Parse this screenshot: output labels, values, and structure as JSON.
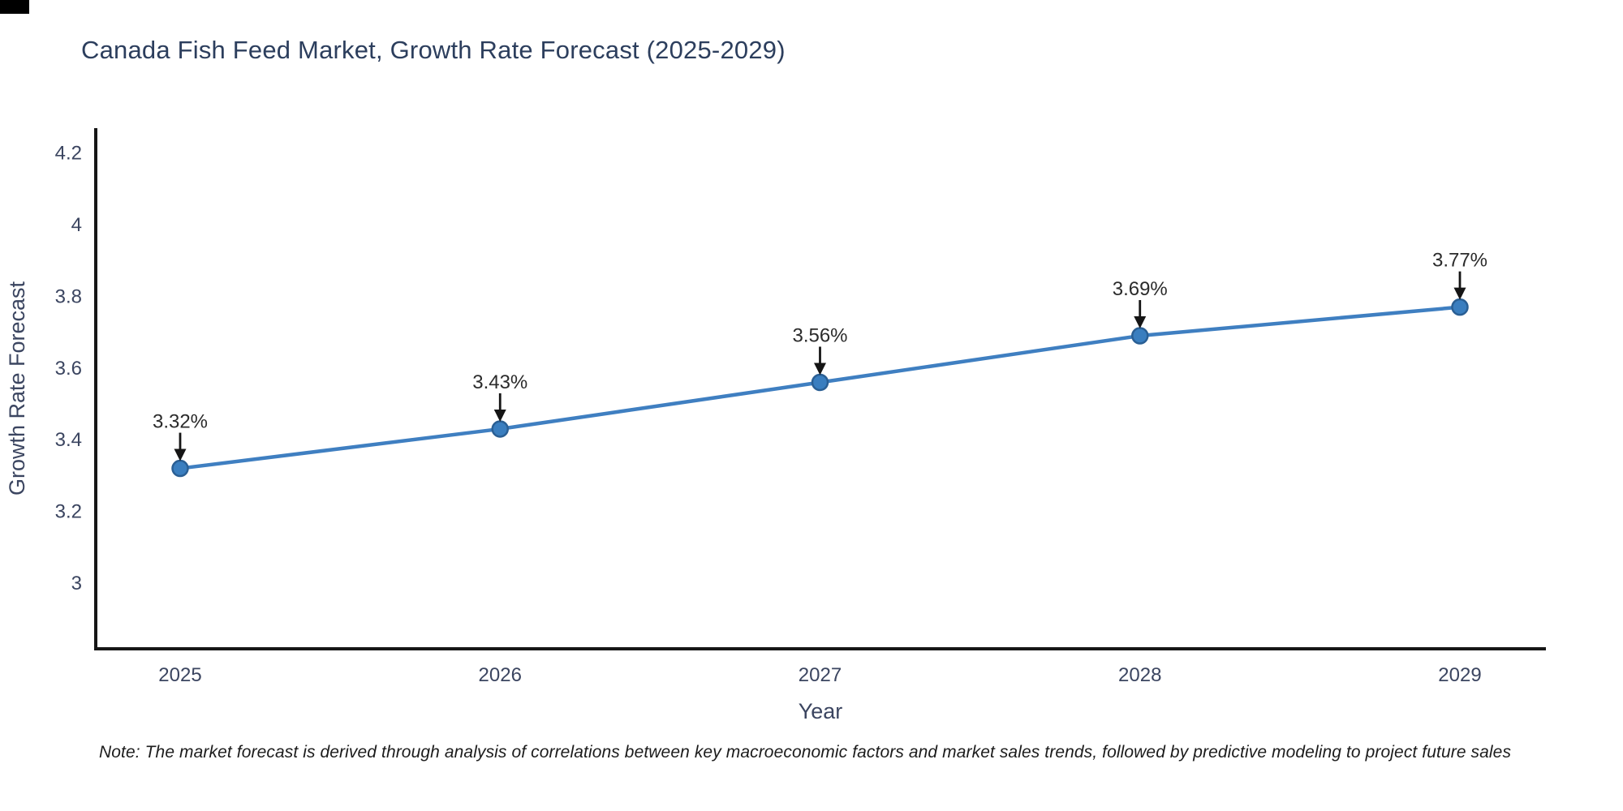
{
  "chart": {
    "title": "Canada Fish Feed Market, Growth Rate Forecast (2025-2029)",
    "note": "Note: The market forecast is derived through analysis of correlations between key macroeconomic factors and market sales trends, followed by predictive modeling to project future sales"
  },
  "chart_data": {
    "type": "line",
    "title": "Canada Fish Feed Market, Growth Rate Forecast (2025-2029)",
    "x": [
      2025,
      2026,
      2027,
      2028,
      2029
    ],
    "y": [
      3.32,
      3.43,
      3.56,
      3.69,
      3.77
    ],
    "point_labels": [
      "3.32%",
      "3.43%",
      "3.56%",
      "3.69%",
      "3.77%"
    ],
    "xlabel": "Year",
    "ylabel": "Growth Rate Forecast",
    "x_tick_labels": [
      "2025",
      "2026",
      "2027",
      "2028",
      "2029"
    ],
    "y_ticks": [
      3,
      3.2,
      3.4,
      3.6,
      3.8,
      4,
      4.2
    ],
    "y_tick_labels": [
      "3",
      "3.2",
      "3.4",
      "3.6",
      "3.8",
      "4",
      "4.2"
    ],
    "ylim": [
      2.82,
      4.27
    ],
    "grid": false,
    "legend": "none",
    "annotation_style": "value label with down-arrow pointing at marker",
    "colors": {
      "line": "#3f7fc1",
      "marker_fill": "#3a7ebf",
      "marker_edge": "#2a5f94",
      "arrow": "#151515",
      "annotation_text": "#2b2b2b",
      "axis_spine": "#161616",
      "tick_text": "#3b4560",
      "axis_label_text": "#3b4560",
      "title_text": "#2c3e5d",
      "note_text": "#1c1c1c",
      "background": "#ffffff"
    }
  }
}
